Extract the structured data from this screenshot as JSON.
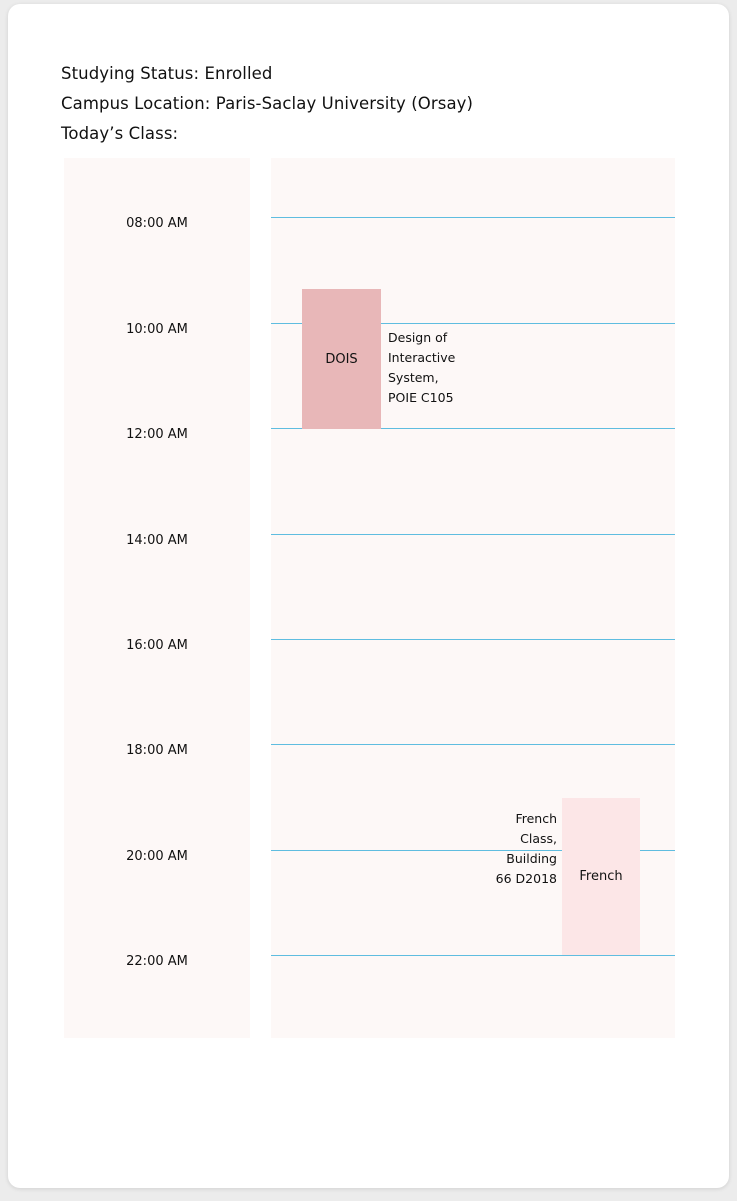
{
  "header": {
    "studying_status": "Studying Status: Enrolled",
    "campus_location": "Campus Location: Paris-Saclay University (Orsay)",
    "todays_class": "Today’s Class:"
  },
  "schedule": {
    "time_labels": [
      "08:00 AM",
      "10:00 AM",
      "12:00 AM",
      "14:00 AM",
      "16:00 AM",
      "18:00 AM",
      "20:00 AM",
      "22:00 AM"
    ],
    "events": [
      {
        "short": "DOIS",
        "desc_lines": [
          "Design of",
          "Interactive",
          "System,",
          "POIE C105"
        ],
        "color": "#e8b7b8"
      },
      {
        "short": "French",
        "desc_lines": [
          "French",
          "Class,",
          "Building",
          "66 D2018"
        ],
        "color": "#fce6e7"
      }
    ]
  },
  "colors": {
    "panel_bg": "#fdf8f7",
    "gridline": "#5fbde0"
  }
}
